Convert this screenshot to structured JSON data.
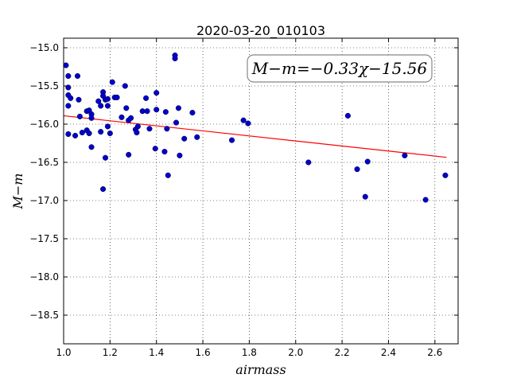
{
  "chart_data": {
    "type": "scatter",
    "title": "2020-03-20_010103",
    "xlabel": "airmass",
    "ylabel": "M−m",
    "xlim": [
      1.0,
      2.7
    ],
    "ylim": [
      -18.875,
      -14.875
    ],
    "y_inverted": true,
    "x_ticks": [
      1.0,
      1.2,
      1.4,
      1.6,
      1.8,
      2.0,
      2.2,
      2.4,
      2.6
    ],
    "x_tick_labels": [
      "1.0",
      "1.2",
      "1.4",
      "1.6",
      "1.8",
      "2.0",
      "2.2",
      "2.4",
      "2.6"
    ],
    "y_ticks": [
      -15.0,
      -15.5,
      -16.0,
      -16.5,
      -17.0,
      -17.5,
      -18.0,
      -18.5
    ],
    "y_tick_labels": [
      "−15.0",
      "−15.5",
      "−16.0",
      "−16.5",
      "−17.0",
      "−17.5",
      "−18.0",
      "−18.5"
    ],
    "grid": true,
    "grid_style": "dotted",
    "annotation": "M−m=−0.33χ−15.56",
    "annotation_position": "top-right",
    "fit_line": {
      "slope": -0.33,
      "intercept": -15.56,
      "x_range": [
        1.0,
        2.65
      ],
      "color": "#ff0000"
    },
    "series": [
      {
        "marker_color": "#0000cc",
        "x": [
          1.01,
          1.02,
          1.02,
          1.02,
          1.03,
          1.02,
          1.02,
          1.05,
          1.06,
          1.065,
          1.07,
          1.08,
          1.1,
          1.1,
          1.11,
          1.12,
          1.12,
          1.11,
          1.12,
          1.15,
          1.16,
          1.16,
          1.17,
          1.17,
          1.18,
          1.19,
          1.19,
          1.18,
          1.17,
          1.19,
          1.2,
          1.21,
          1.22,
          1.23,
          1.25,
          1.265,
          1.27,
          1.28,
          1.28,
          1.29,
          1.31,
          1.315,
          1.32,
          1.34,
          1.355,
          1.36,
          1.37,
          1.395,
          1.4,
          1.4,
          1.435,
          1.44,
          1.445,
          1.45,
          1.48,
          1.48,
          1.485,
          1.495,
          1.5,
          1.52,
          1.555,
          1.575,
          1.725,
          1.775,
          1.795,
          2.055,
          2.225,
          2.265,
          2.3,
          2.31,
          2.47,
          2.56,
          2.645
        ],
        "y": [
          -15.23,
          -15.37,
          -15.52,
          -15.62,
          -15.66,
          -15.76,
          -16.13,
          -16.15,
          -15.37,
          -15.68,
          -15.9,
          -16.11,
          -15.83,
          -16.08,
          -15.82,
          -15.87,
          -15.92,
          -16.12,
          -16.3,
          -15.7,
          -15.76,
          -16.1,
          -15.58,
          -15.63,
          -15.68,
          -15.76,
          -16.03,
          -16.44,
          -16.85,
          -15.67,
          -16.12,
          -15.45,
          -15.65,
          -15.65,
          -15.91,
          -15.5,
          -15.79,
          -15.95,
          -16.4,
          -15.92,
          -16.07,
          -16.11,
          -16.03,
          -15.83,
          -15.66,
          -15.83,
          -16.06,
          -16.32,
          -15.59,
          -15.81,
          -16.36,
          -15.84,
          -16.06,
          -16.67,
          -15.1,
          -15.14,
          -15.98,
          -15.79,
          -16.41,
          -16.19,
          -15.85,
          -16.17,
          -16.21,
          -15.95,
          -15.99,
          -16.5,
          -15.89,
          -16.59,
          -16.95,
          -16.49,
          -16.41,
          -16.99,
          -16.67
        ]
      }
    ]
  }
}
